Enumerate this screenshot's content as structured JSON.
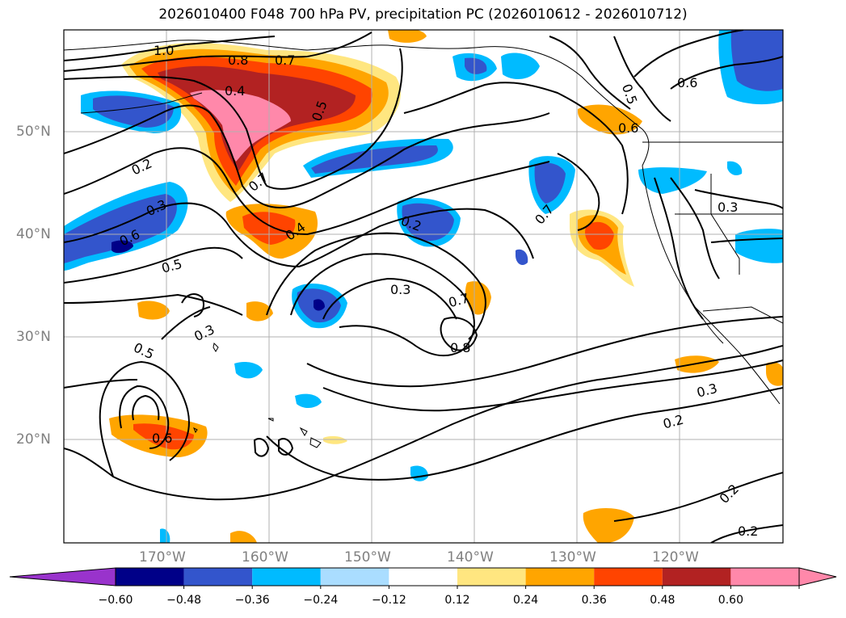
{
  "title": "2026010400 F048 700 hPa PV, precipitation PC (2026010612 - 2026010712)",
  "map": {
    "lon_labels": [
      "170°W",
      "160°W",
      "150°W",
      "140°W",
      "130°W",
      "120°W"
    ],
    "lat_labels": [
      "50°N",
      "40°N",
      "30°N",
      "20°N"
    ],
    "contour_labels": [
      "1.0",
      "0.8",
      "0.7",
      "0.4",
      "0.5",
      "0.2",
      "0.7",
      "0.3",
      "0.6",
      "0.5",
      "0.4",
      "0.2",
      "0.3",
      "0.7",
      "0.8",
      "0.3",
      "0.5",
      "0.6",
      "0.7",
      "0.6",
      "0.5",
      "0.6",
      "0.3",
      "0.3",
      "0.2",
      "0.2",
      "0.2"
    ]
  },
  "colorbar": {
    "ticks": [
      "−0.60",
      "−0.48",
      "−0.36",
      "−0.24",
      "−0.12",
      "0.12",
      "0.24",
      "0.36",
      "0.48",
      "0.60"
    ],
    "colors": [
      "#9933cc",
      "#000088",
      "#3355cc",
      "#00bbff",
      "#aaddff",
      "#ffffff",
      "#ffe680",
      "#ffa500",
      "#ff4400",
      "#b22222",
      "#ff88aa",
      "#ff88aa"
    ]
  }
}
